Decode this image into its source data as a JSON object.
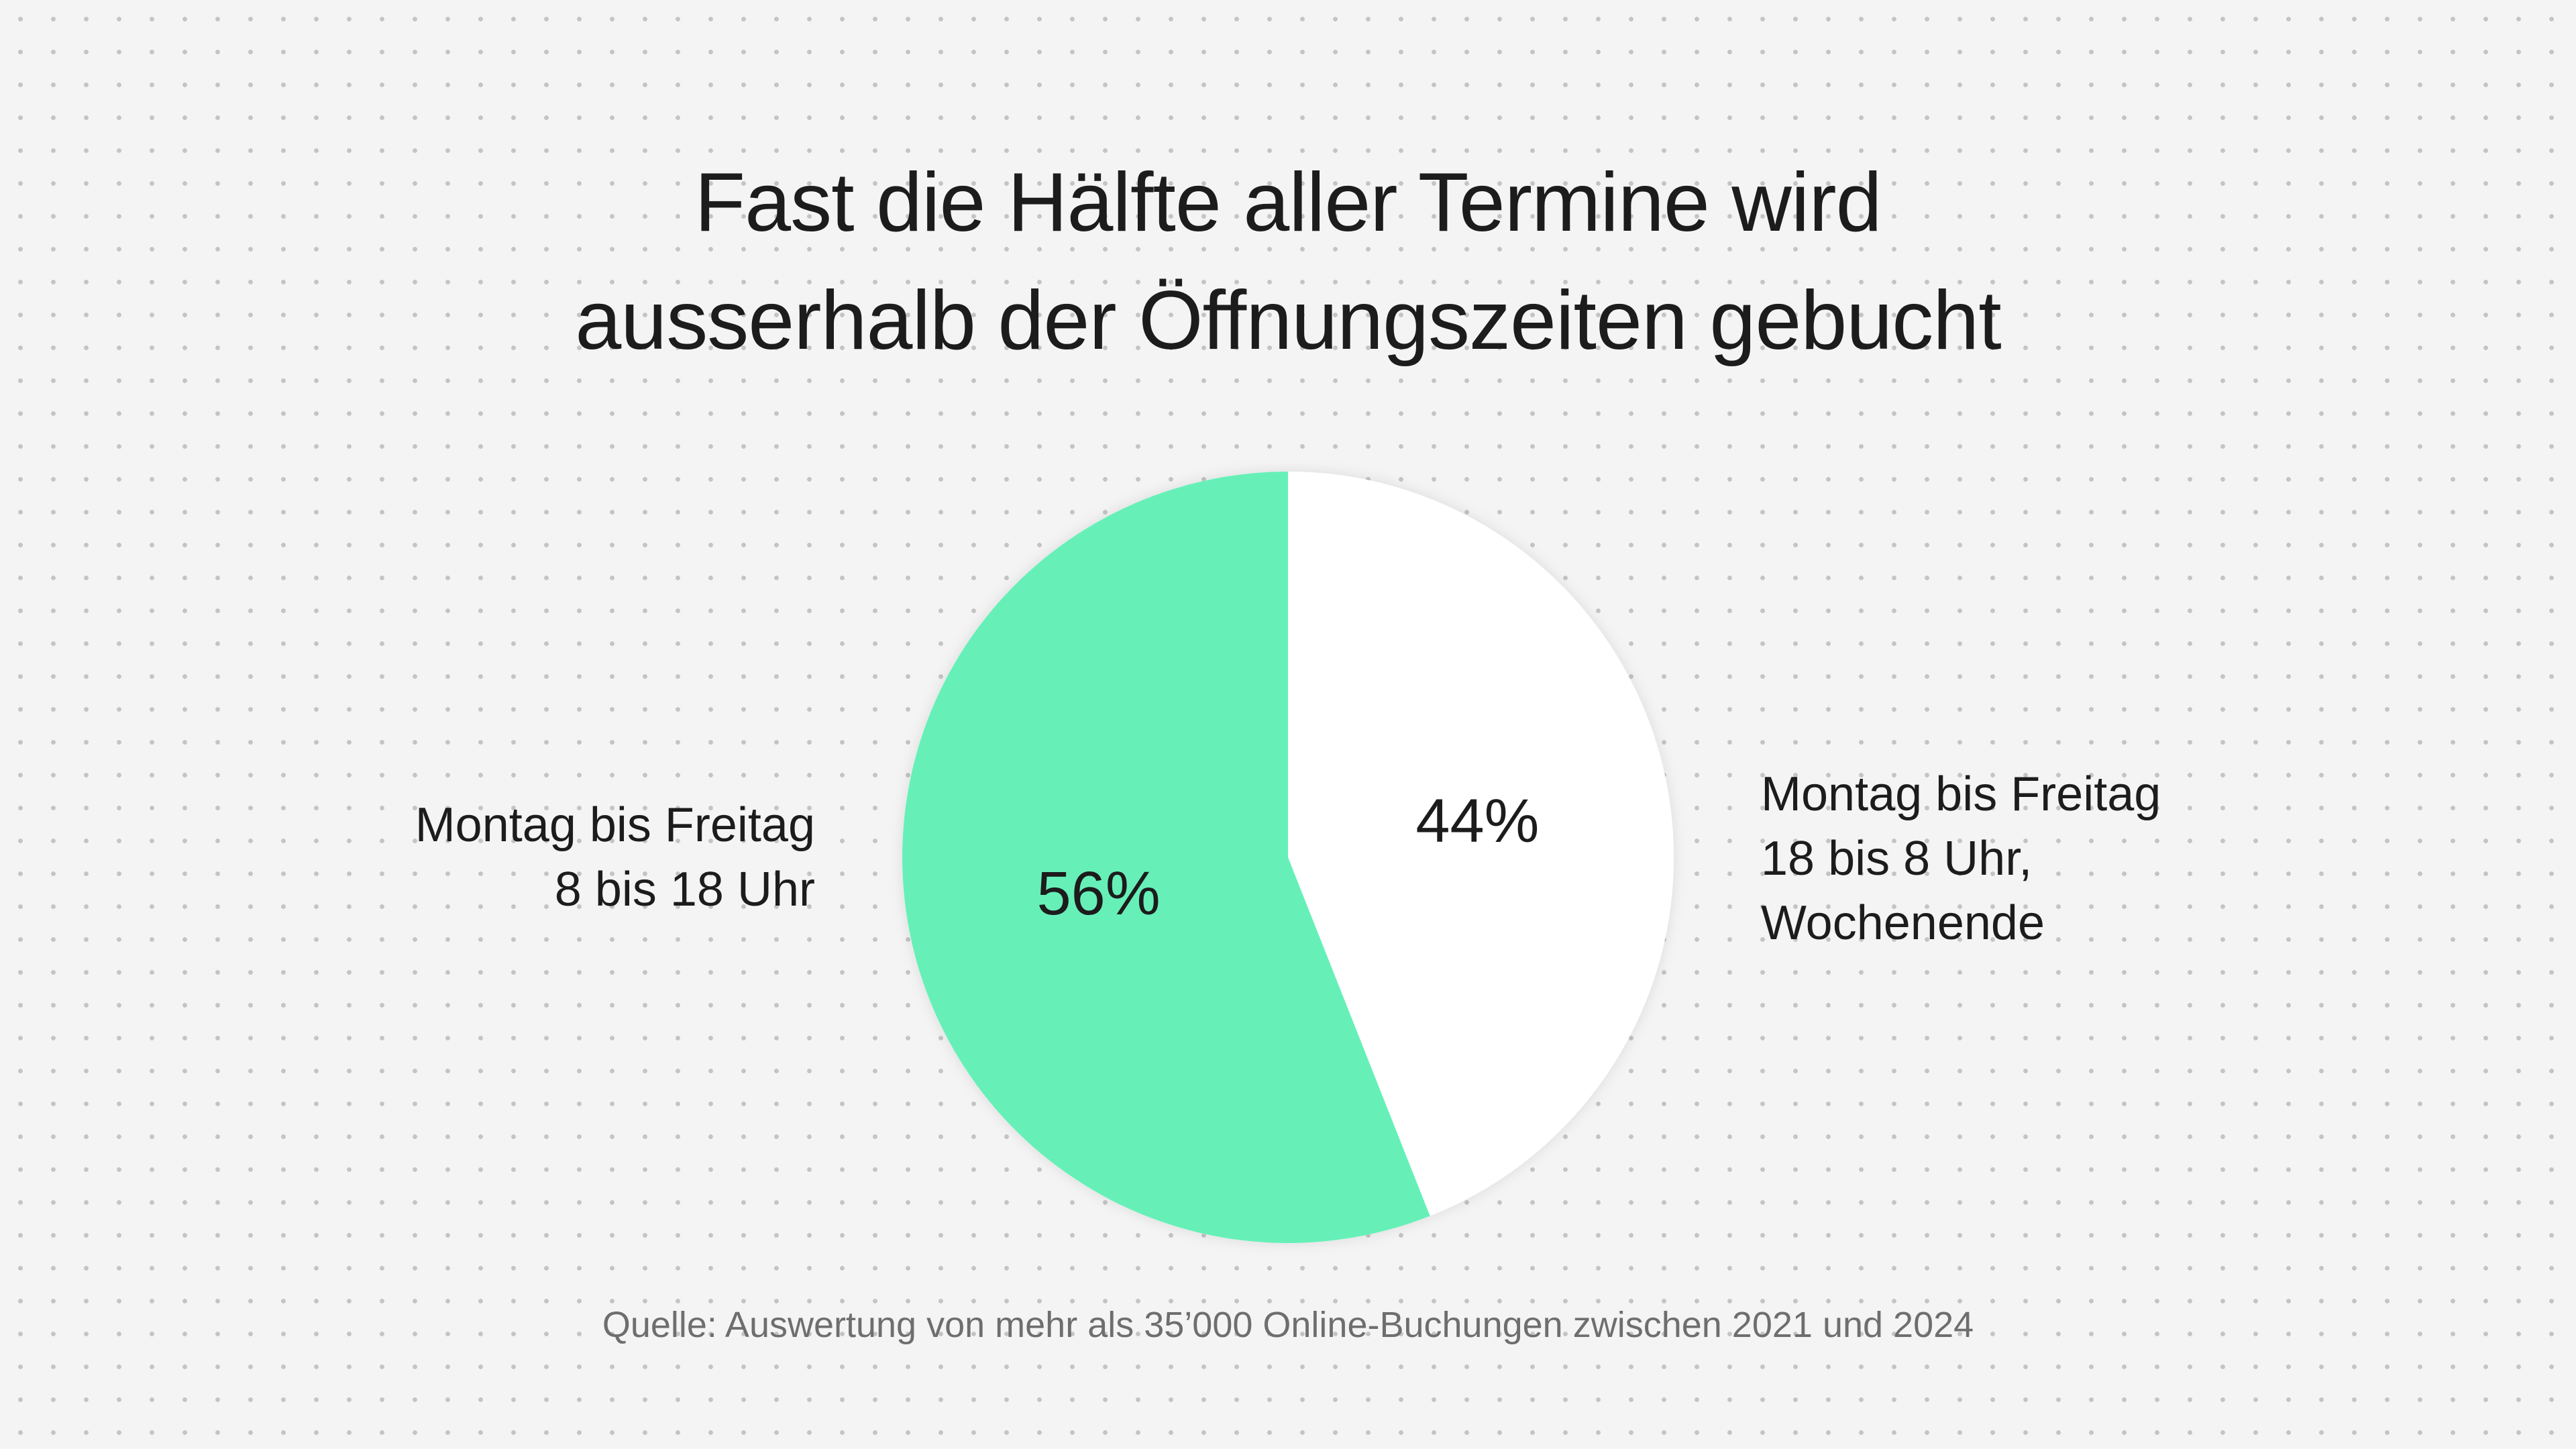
{
  "chart_data": {
    "type": "pie",
    "title_lines": [
      "Fast die Hälfte aller Termine wird",
      "ausserhalb der Öffnungszeiten gebucht"
    ],
    "slices": [
      {
        "label_lines": [
          "Montag bis Freitag",
          "18 bis 8 Uhr,",
          "Wochenende"
        ],
        "value": 44,
        "value_label": "44%",
        "color": "#ffffff"
      },
      {
        "label_lines": [
          "Montag bis Freitag",
          "8 bis 18 Uhr"
        ],
        "value": 56,
        "value_label": "56%",
        "color": "#66f0b8"
      }
    ],
    "start_angle": "12 o'clock",
    "direction": "clockwise",
    "source": "Quelle: Auswertung von mehr als 35’000 Online-Buchungen zwischen 2021 und 2024"
  }
}
